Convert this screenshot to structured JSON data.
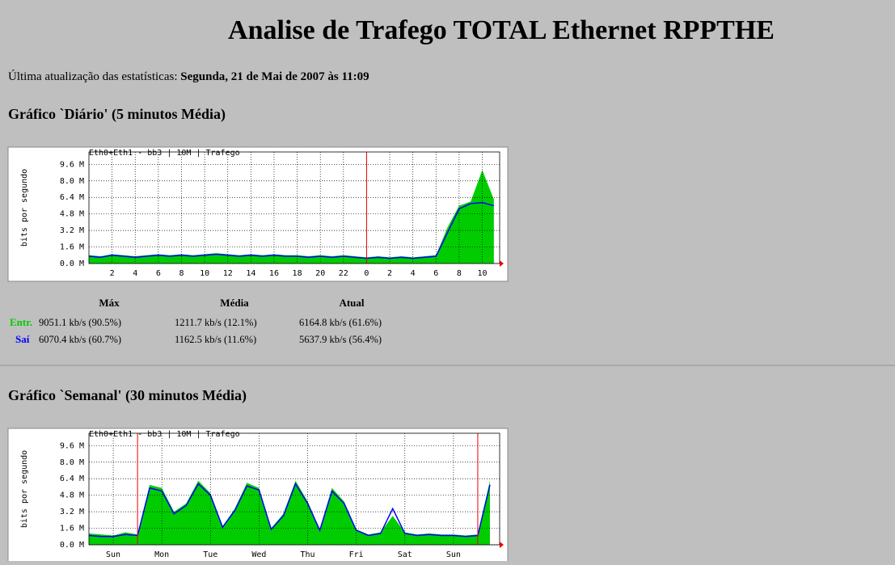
{
  "header": {
    "title": "Analise de Trafego TOTAL Ethernet RPPTHE",
    "updated_label": "Última atualização das estatísticas:",
    "updated_value": "Segunda, 21 de Mai de 2007 às 11:09"
  },
  "sections": [
    {
      "heading": "Gráfico `Diário' (5 minutos Média)",
      "chart_data": {
        "type": "area",
        "title": "Eth0+Eth1 - bb3 | 10M | Trafego",
        "y_label": "bits por segundo",
        "x": [
          0,
          1,
          2,
          3,
          4,
          5,
          6,
          7,
          8,
          9,
          10,
          11,
          12,
          13,
          14,
          15,
          16,
          17,
          18,
          19,
          20,
          21,
          22,
          23,
          24,
          25,
          26,
          27,
          28,
          29,
          30,
          31,
          32,
          33,
          34,
          35
        ],
        "series": [
          {
            "name": "Entr.",
            "color": "#00cc00",
            "values": [
              0.8,
              0.7,
              0.9,
              0.8,
              0.7,
              0.8,
              0.9,
              0.8,
              0.9,
              0.8,
              0.9,
              1.0,
              0.9,
              0.8,
              0.9,
              0.8,
              0.9,
              0.8,
              0.8,
              0.7,
              0.8,
              0.7,
              0.8,
              0.7,
              0.6,
              0.7,
              0.6,
              0.7,
              0.6,
              0.7,
              0.8,
              3.5,
              5.6,
              6.0,
              9.05,
              6.2
            ]
          },
          {
            "name": "Saí",
            "color": "#0000ff",
            "values": [
              0.7,
              0.6,
              0.8,
              0.7,
              0.6,
              0.7,
              0.8,
              0.7,
              0.8,
              0.7,
              0.8,
              0.9,
              0.8,
              0.7,
              0.8,
              0.7,
              0.8,
              0.7,
              0.7,
              0.6,
              0.7,
              0.6,
              0.7,
              0.6,
              0.5,
              0.6,
              0.5,
              0.6,
              0.5,
              0.6,
              0.7,
              3.0,
              5.3,
              5.8,
              5.9,
              5.6
            ]
          }
        ],
        "xlim": [
          0,
          35.5
        ],
        "xticks": [
          2,
          4,
          6,
          8,
          10,
          12,
          14,
          16,
          18,
          20,
          22,
          {
            "value": 24,
            "label": "0"
          },
          {
            "value": 26,
            "label": "2"
          },
          {
            "value": 28,
            "label": "4"
          },
          {
            "value": 30,
            "label": "6"
          },
          {
            "value": 32,
            "label": "8"
          },
          {
            "value": 34,
            "label": "10"
          }
        ],
        "ylim": [
          0,
          10.8
        ],
        "yticks": [
          {
            "value": 0,
            "label": "0.0 M"
          },
          {
            "value": 1.6,
            "label": "1.6 M"
          },
          {
            "value": 3.2,
            "label": "3.2 M"
          },
          {
            "value": 4.8,
            "label": "4.8 M"
          },
          {
            "value": 6.4,
            "label": "6.4 M"
          },
          {
            "value": 8,
            "label": "8.0 M"
          },
          {
            "value": 9.6,
            "label": "9.6 M"
          }
        ],
        "vlines": [
          24
        ],
        "grid": true
      },
      "stats": {
        "columns": [
          "Máx",
          "Média",
          "Atual"
        ],
        "rows": [
          {
            "label": "Entr.",
            "cells": [
              "9051.1 kb/s (90.5%)",
              "1211.7 kb/s (12.1%)",
              "6164.8 kb/s (61.6%)"
            ]
          },
          {
            "label": "Saí",
            "cells": [
              "6070.4 kb/s (60.7%)",
              "1162.5 kb/s (11.6%)",
              "5637.9 kb/s (56.4%)"
            ]
          }
        ]
      }
    },
    {
      "heading": "Gráfico `Semanal' (30 minutos Média)",
      "chart_data": {
        "type": "area",
        "title": "Eth0+Eth1 - bb3 | 10M | Trafego",
        "y_label": "bits por segundo",
        "x": [
          0,
          0.25,
          0.5,
          0.75,
          1,
          1.25,
          1.5,
          1.75,
          2,
          2.25,
          2.5,
          2.75,
          3,
          3.25,
          3.5,
          3.75,
          4,
          4.25,
          4.5,
          4.75,
          5,
          5.25,
          5.5,
          5.75,
          6,
          6.25,
          6.5,
          6.75,
          7,
          7.25,
          7.5,
          7.75,
          8,
          8.25
        ],
        "series": [
          {
            "name": "Entr.",
            "color": "#00cc00",
            "values": [
              1.1,
              1.0,
              0.9,
              1.2,
              1.0,
              5.8,
              5.5,
              3.2,
              4.0,
              6.2,
              5.0,
              1.8,
              3.5,
              6.0,
              5.5,
              1.6,
              3.0,
              6.2,
              4.2,
              1.5,
              5.5,
              4.2,
              1.5,
              1.0,
              1.2,
              2.8,
              1.2,
              1.0,
              1.1,
              1.0,
              1.0,
              0.9,
              1.0,
              6.2
            ]
          },
          {
            "name": "Saí",
            "color": "#0000ff",
            "values": [
              0.9,
              0.8,
              0.8,
              1.0,
              0.9,
              5.5,
              5.2,
              3.0,
              3.8,
              5.9,
              4.8,
              1.7,
              3.3,
              5.7,
              5.3,
              1.5,
              2.8,
              5.9,
              4.0,
              1.4,
              5.2,
              4.0,
              1.4,
              0.9,
              1.1,
              3.5,
              1.1,
              0.9,
              1.0,
              0.9,
              0.9,
              0.8,
              0.9,
              5.8
            ]
          }
        ],
        "xlim": [
          0,
          8.45
        ],
        "xticks": [
          {
            "value": 0.5,
            "label": "Sun"
          },
          {
            "value": 1.5,
            "label": "Mon"
          },
          {
            "value": 2.5,
            "label": "Tue"
          },
          {
            "value": 3.5,
            "label": "Wed"
          },
          {
            "value": 4.5,
            "label": "Thu"
          },
          {
            "value": 5.5,
            "label": "Fri"
          },
          {
            "value": 6.5,
            "label": "Sat"
          },
          {
            "value": 7.5,
            "label": "Sun"
          }
        ],
        "ylim": [
          0,
          10.8
        ],
        "yticks": [
          {
            "value": 0,
            "label": "0.0 M"
          },
          {
            "value": 1.6,
            "label": "1.6 M"
          },
          {
            "value": 3.2,
            "label": "3.2 M"
          },
          {
            "value": 4.8,
            "label": "4.8 M"
          },
          {
            "value": 6.4,
            "label": "6.4 M"
          },
          {
            "value": 8,
            "label": "8.0 M"
          },
          {
            "value": 9.6,
            "label": "9.6 M"
          }
        ],
        "vlines": [
          1,
          8
        ],
        "grid": true
      }
    }
  ]
}
